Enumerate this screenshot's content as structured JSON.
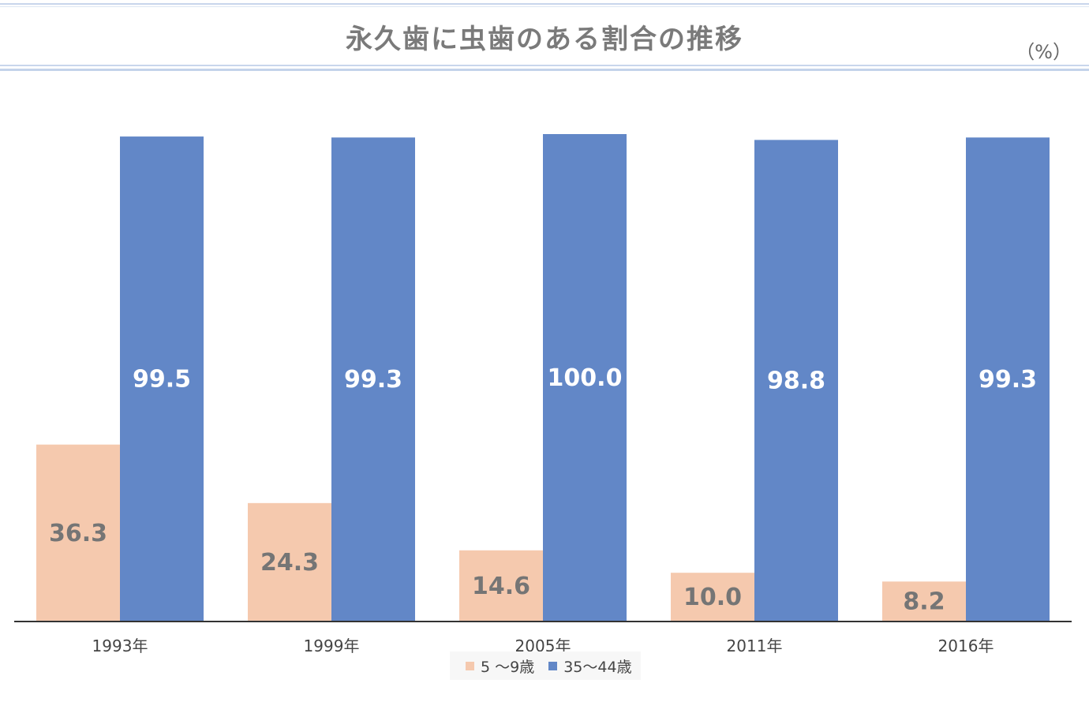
{
  "header": {
    "title": "永久歯に虫歯のある割合の推移",
    "unit": "（%）"
  },
  "colors": {
    "series_child": "#f5c9ae",
    "series_adult": "#6287c7",
    "axis": "#333333",
    "label_dark": "#757575",
    "label_light": "#ffffff"
  },
  "chart_data": {
    "type": "bar",
    "title": "永久歯に虫歯のある割合の推移",
    "xlabel": "",
    "ylabel": "",
    "unit": "（%）",
    "categories": [
      "1993年",
      "1999年",
      "2005年",
      "2011年",
      "2016年"
    ],
    "series": [
      {
        "name": "5 〜9歳",
        "values": [
          36.3,
          24.3,
          14.6,
          10.0,
          8.2
        ],
        "labels": [
          "36.3",
          "24.3",
          "14.6",
          "10.0",
          "8.2"
        ]
      },
      {
        "name": "35〜44歳",
        "values": [
          99.5,
          99.3,
          100.0,
          98.8,
          99.3
        ],
        "labels": [
          "99.5",
          "99.3",
          "100.0",
          "98.8",
          "99.3"
        ]
      }
    ],
    "ylim": [
      0,
      100
    ],
    "grid": false,
    "legend": "bottom",
    "data_labels": true
  }
}
